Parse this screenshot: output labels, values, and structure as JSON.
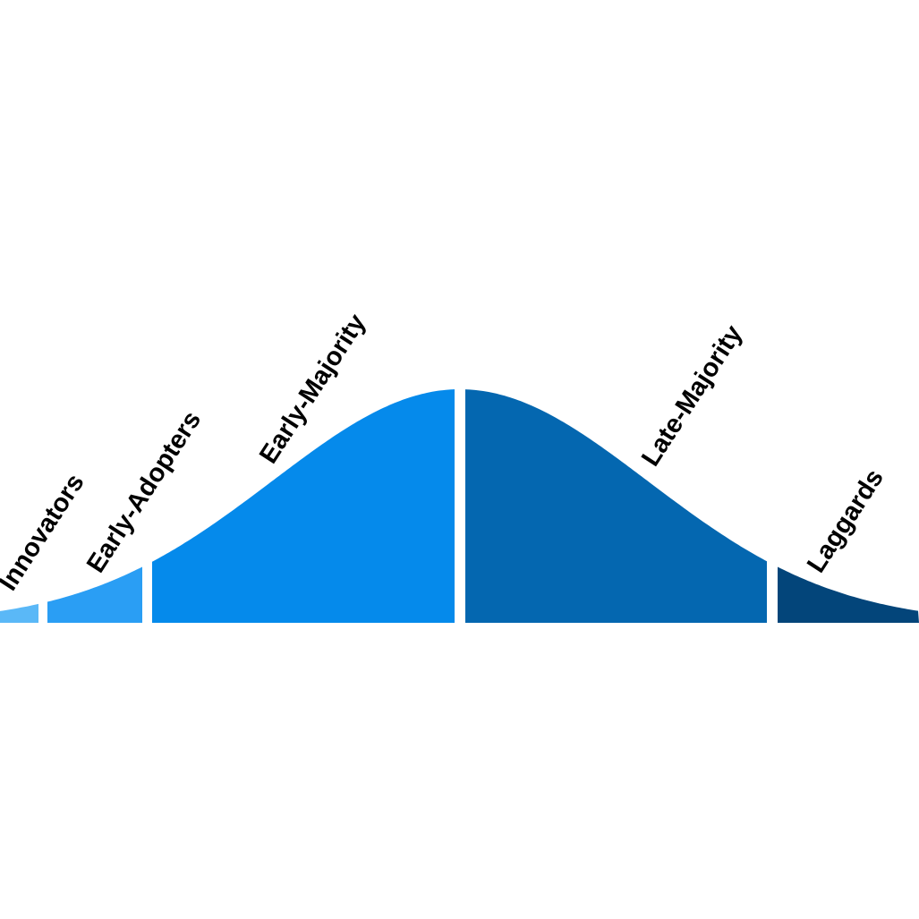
{
  "segments": [
    {
      "label": "Innovators"
    },
    {
      "label": "Early-Adopters"
    },
    {
      "label": "Early-Majority"
    },
    {
      "label": "Late-Majority"
    },
    {
      "label": "Laggards"
    }
  ]
}
